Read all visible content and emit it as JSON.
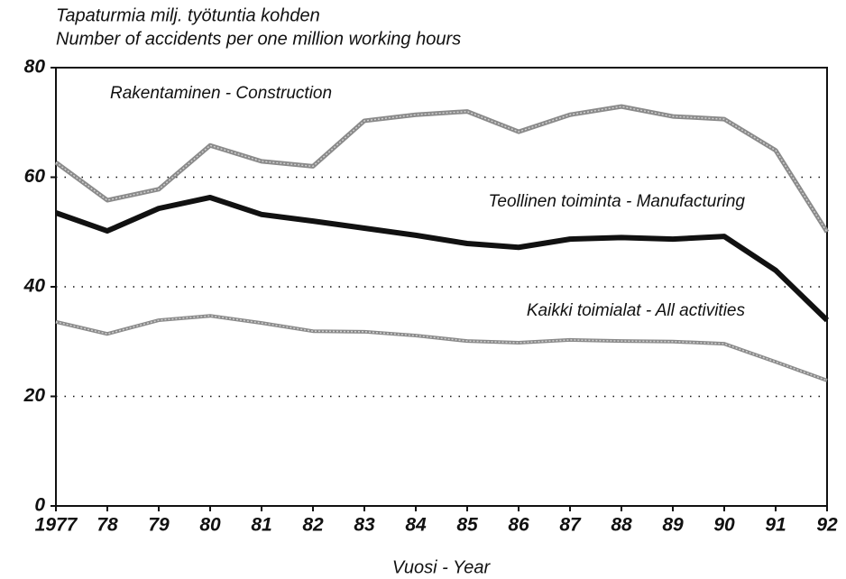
{
  "chart_data": {
    "type": "line",
    "title": "Tapaturmia milj. työtuntia kohden",
    "subtitle": "Number of accidents per one million working hours",
    "x_label": "Vuosi - Year",
    "categories": [
      "1977",
      "78",
      "79",
      "80",
      "81",
      "82",
      "83",
      "84",
      "85",
      "86",
      "87",
      "88",
      "89",
      "90",
      "91",
      "92"
    ],
    "series": [
      {
        "name": "Rakentaminen - Construction",
        "color": "#8a8a8a",
        "values": [
          62.7,
          55.8,
          57.8,
          65.8,
          62.9,
          62.0,
          70.3,
          71.4,
          72.0,
          68.3,
          71.4,
          72.9,
          71.1,
          70.6,
          64.9,
          50.0
        ]
      },
      {
        "name": "Teollinen toiminta - Manufacturing",
        "color": "#111111",
        "values": [
          53.5,
          50.2,
          54.3,
          56.3,
          53.2,
          52.0,
          50.7,
          49.4,
          47.9,
          47.2,
          48.7,
          49.0,
          48.7,
          49.2,
          43.0,
          33.9
        ]
      },
      {
        "name": "Kaikki toimialat - All activities",
        "color": "#8a8a8a",
        "values": [
          33.6,
          31.4,
          33.9,
          34.7,
          33.4,
          31.9,
          31.8,
          31.1,
          30.1,
          29.8,
          30.3,
          30.1,
          30.0,
          29.6,
          26.3,
          22.9
        ]
      }
    ],
    "ylim": [
      0,
      80
    ],
    "yticks": [
      0,
      20,
      40,
      60,
      80
    ],
    "grid": true
  }
}
